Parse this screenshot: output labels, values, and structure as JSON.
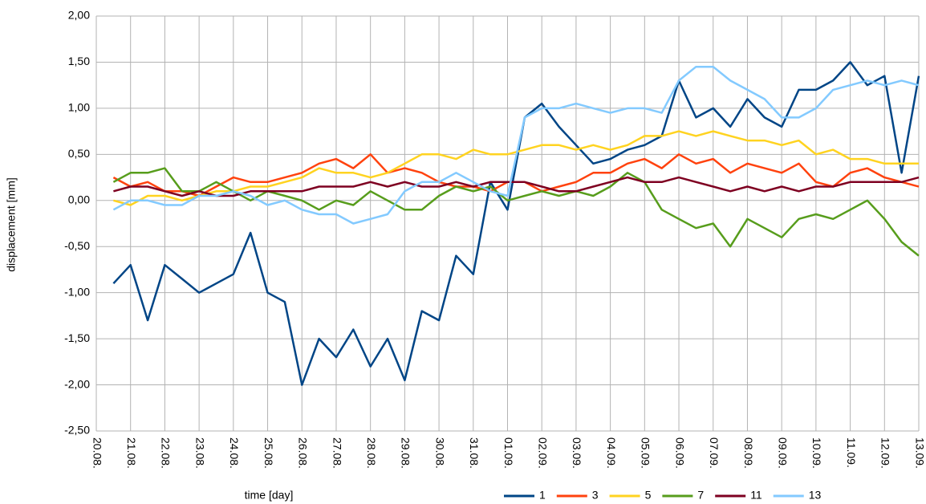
{
  "chart_data": {
    "type": "line",
    "x_label": "time [day]",
    "y_label": "displacement [mm]",
    "categories": [
      "20.08.",
      null,
      "21.08.",
      null,
      "22.08.",
      null,
      "23.08.",
      null,
      "24.08.",
      null,
      "25.08.",
      null,
      "26.08.",
      null,
      "27.08.",
      null,
      "28.08.",
      null,
      "29.08.",
      null,
      "30.08.",
      null,
      "31.08.",
      null,
      "01.09.",
      null,
      "02.09.",
      null,
      "03.09.",
      null,
      "04.09.",
      null,
      "05.09.",
      null,
      "06.09.",
      null,
      "07.09.",
      null,
      "08.09.",
      null,
      "09.09.",
      null,
      "10.09.",
      null,
      "11.09.",
      null,
      "12.09.",
      null,
      "13.09."
    ],
    "ylim": [
      -2.5,
      2.0
    ],
    "yticks": [
      {
        "value": -2.5,
        "label": "-2,50"
      },
      {
        "value": -2.0,
        "label": "-2,00"
      },
      {
        "value": -1.5,
        "label": "-1,50"
      },
      {
        "value": -1.0,
        "label": "-1,00"
      },
      {
        "value": -0.5,
        "label": "-0,50"
      },
      {
        "value": 0,
        "label": "0,00"
      },
      {
        "value": 0.5,
        "label": "0,50"
      },
      {
        "value": 1.0,
        "label": "1,00"
      },
      {
        "value": 1.5,
        "label": "1,50"
      },
      {
        "value": 2.0,
        "label": "2,00"
      }
    ],
    "grid": true,
    "legend": "bottom-right",
    "series": [
      {
        "name": "1",
        "color": "#004586",
        "values": [
          null,
          -0.9,
          -0.7,
          -1.3,
          -0.7,
          -0.85,
          -1.0,
          -0.9,
          -0.8,
          -0.35,
          -1.0,
          -1.1,
          -2.0,
          -1.5,
          -1.7,
          -1.4,
          -1.8,
          -1.5,
          -1.95,
          -1.2,
          -1.3,
          -0.6,
          -0.8,
          0.2,
          -0.1,
          0.9,
          1.05,
          0.8,
          0.6,
          0.4,
          0.45,
          0.55,
          0.6,
          0.7,
          1.3,
          0.9,
          1.0,
          0.8,
          1.1,
          0.9,
          0.8,
          1.2,
          1.2,
          1.3,
          1.5,
          1.25,
          1.35,
          0.3,
          1.35
        ]
      },
      {
        "name": "3",
        "color": "#ff420e",
        "values": [
          null,
          0.25,
          0.15,
          0.2,
          0.1,
          0.1,
          0.05,
          0.15,
          0.25,
          0.2,
          0.2,
          0.25,
          0.3,
          0.4,
          0.45,
          0.35,
          0.5,
          0.3,
          0.35,
          0.3,
          0.2,
          0.15,
          0.15,
          0.1,
          0.2,
          0.2,
          0.1,
          0.15,
          0.2,
          0.3,
          0.3,
          0.4,
          0.45,
          0.35,
          0.5,
          0.4,
          0.45,
          0.3,
          0.4,
          0.35,
          0.3,
          0.4,
          0.2,
          0.15,
          0.3,
          0.35,
          0.25,
          0.2,
          0.15
        ]
      },
      {
        "name": "5",
        "color": "#ffd320",
        "values": [
          null,
          0.0,
          -0.05,
          0.05,
          0.05,
          0.0,
          0.05,
          0.1,
          0.1,
          0.15,
          0.15,
          0.2,
          0.25,
          0.35,
          0.3,
          0.3,
          0.25,
          0.3,
          0.4,
          0.5,
          0.5,
          0.45,
          0.55,
          0.5,
          0.5,
          0.55,
          0.6,
          0.6,
          0.55,
          0.6,
          0.55,
          0.6,
          0.7,
          0.7,
          0.75,
          0.7,
          0.75,
          0.7,
          0.65,
          0.65,
          0.6,
          0.65,
          0.5,
          0.55,
          0.45,
          0.45,
          0.4,
          0.4,
          0.4
        ]
      },
      {
        "name": "7",
        "color": "#579d1c",
        "values": [
          null,
          0.2,
          0.3,
          0.3,
          0.35,
          0.1,
          0.1,
          0.2,
          0.1,
          0.0,
          0.1,
          0.05,
          0.0,
          -0.1,
          0.0,
          -0.05,
          0.1,
          0.0,
          -0.1,
          -0.1,
          0.05,
          0.15,
          0.1,
          0.15,
          0.0,
          0.05,
          0.1,
          0.05,
          0.1,
          0.05,
          0.15,
          0.3,
          0.2,
          -0.1,
          -0.2,
          -0.3,
          -0.25,
          -0.5,
          -0.2,
          -0.3,
          -0.4,
          -0.2,
          -0.15,
          -0.2,
          -0.1,
          0.0,
          -0.2,
          -0.45,
          -0.6
        ]
      },
      {
        "name": "11",
        "color": "#7e0021",
        "values": [
          null,
          0.1,
          0.15,
          0.15,
          0.1,
          0.05,
          0.1,
          0.05,
          0.05,
          0.1,
          0.1,
          0.1,
          0.1,
          0.15,
          0.15,
          0.15,
          0.2,
          0.15,
          0.2,
          0.15,
          0.15,
          0.2,
          0.15,
          0.2,
          0.2,
          0.2,
          0.15,
          0.1,
          0.1,
          0.15,
          0.2,
          0.25,
          0.2,
          0.2,
          0.25,
          0.2,
          0.15,
          0.1,
          0.15,
          0.1,
          0.15,
          0.1,
          0.15,
          0.15,
          0.2,
          0.2,
          0.2,
          0.2,
          0.25
        ]
      },
      {
        "name": "13",
        "color": "#83caff",
        "values": [
          null,
          -0.1,
          0.0,
          0.0,
          -0.05,
          -0.05,
          0.05,
          0.05,
          0.1,
          0.05,
          -0.05,
          0.0,
          -0.1,
          -0.15,
          -0.15,
          -0.25,
          -0.2,
          -0.15,
          0.1,
          0.2,
          0.2,
          0.3,
          0.2,
          0.1,
          0.05,
          0.9,
          1.0,
          1.0,
          1.05,
          1.0,
          0.95,
          1.0,
          1.0,
          0.95,
          1.3,
          1.45,
          1.45,
          1.3,
          1.2,
          1.1,
          0.9,
          0.9,
          1.0,
          1.2,
          1.25,
          1.3,
          1.25,
          1.3,
          1.25
        ]
      }
    ]
  }
}
